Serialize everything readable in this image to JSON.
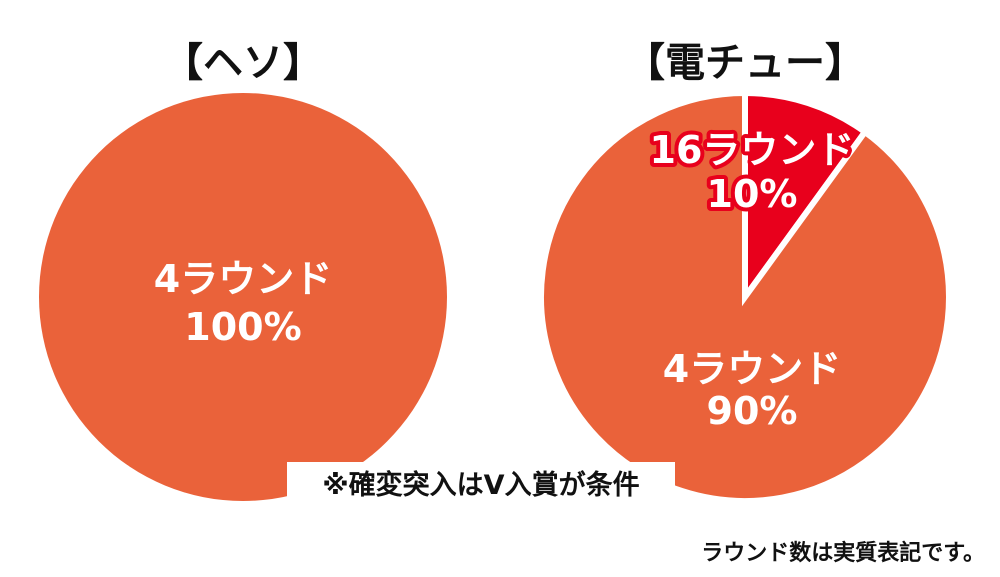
{
  "chart_data": [
    {
      "type": "pie",
      "title": "【ヘソ】",
      "slices": [
        {
          "label": "4ラウンド",
          "value": 100,
          "value_label": "100%",
          "color": "#ea623a"
        }
      ]
    },
    {
      "type": "pie",
      "title": "【電チュー】",
      "slices": [
        {
          "label": "16ラウンド",
          "value": 10,
          "value_label": "10%",
          "color": "#e8001c"
        },
        {
          "label": "4ラウンド",
          "value": 90,
          "value_label": "90%",
          "color": "#ea623a"
        }
      ]
    }
  ],
  "note": "※確変突入はV入賞が条件",
  "footnote": "ラウンド数は実質表記です。"
}
